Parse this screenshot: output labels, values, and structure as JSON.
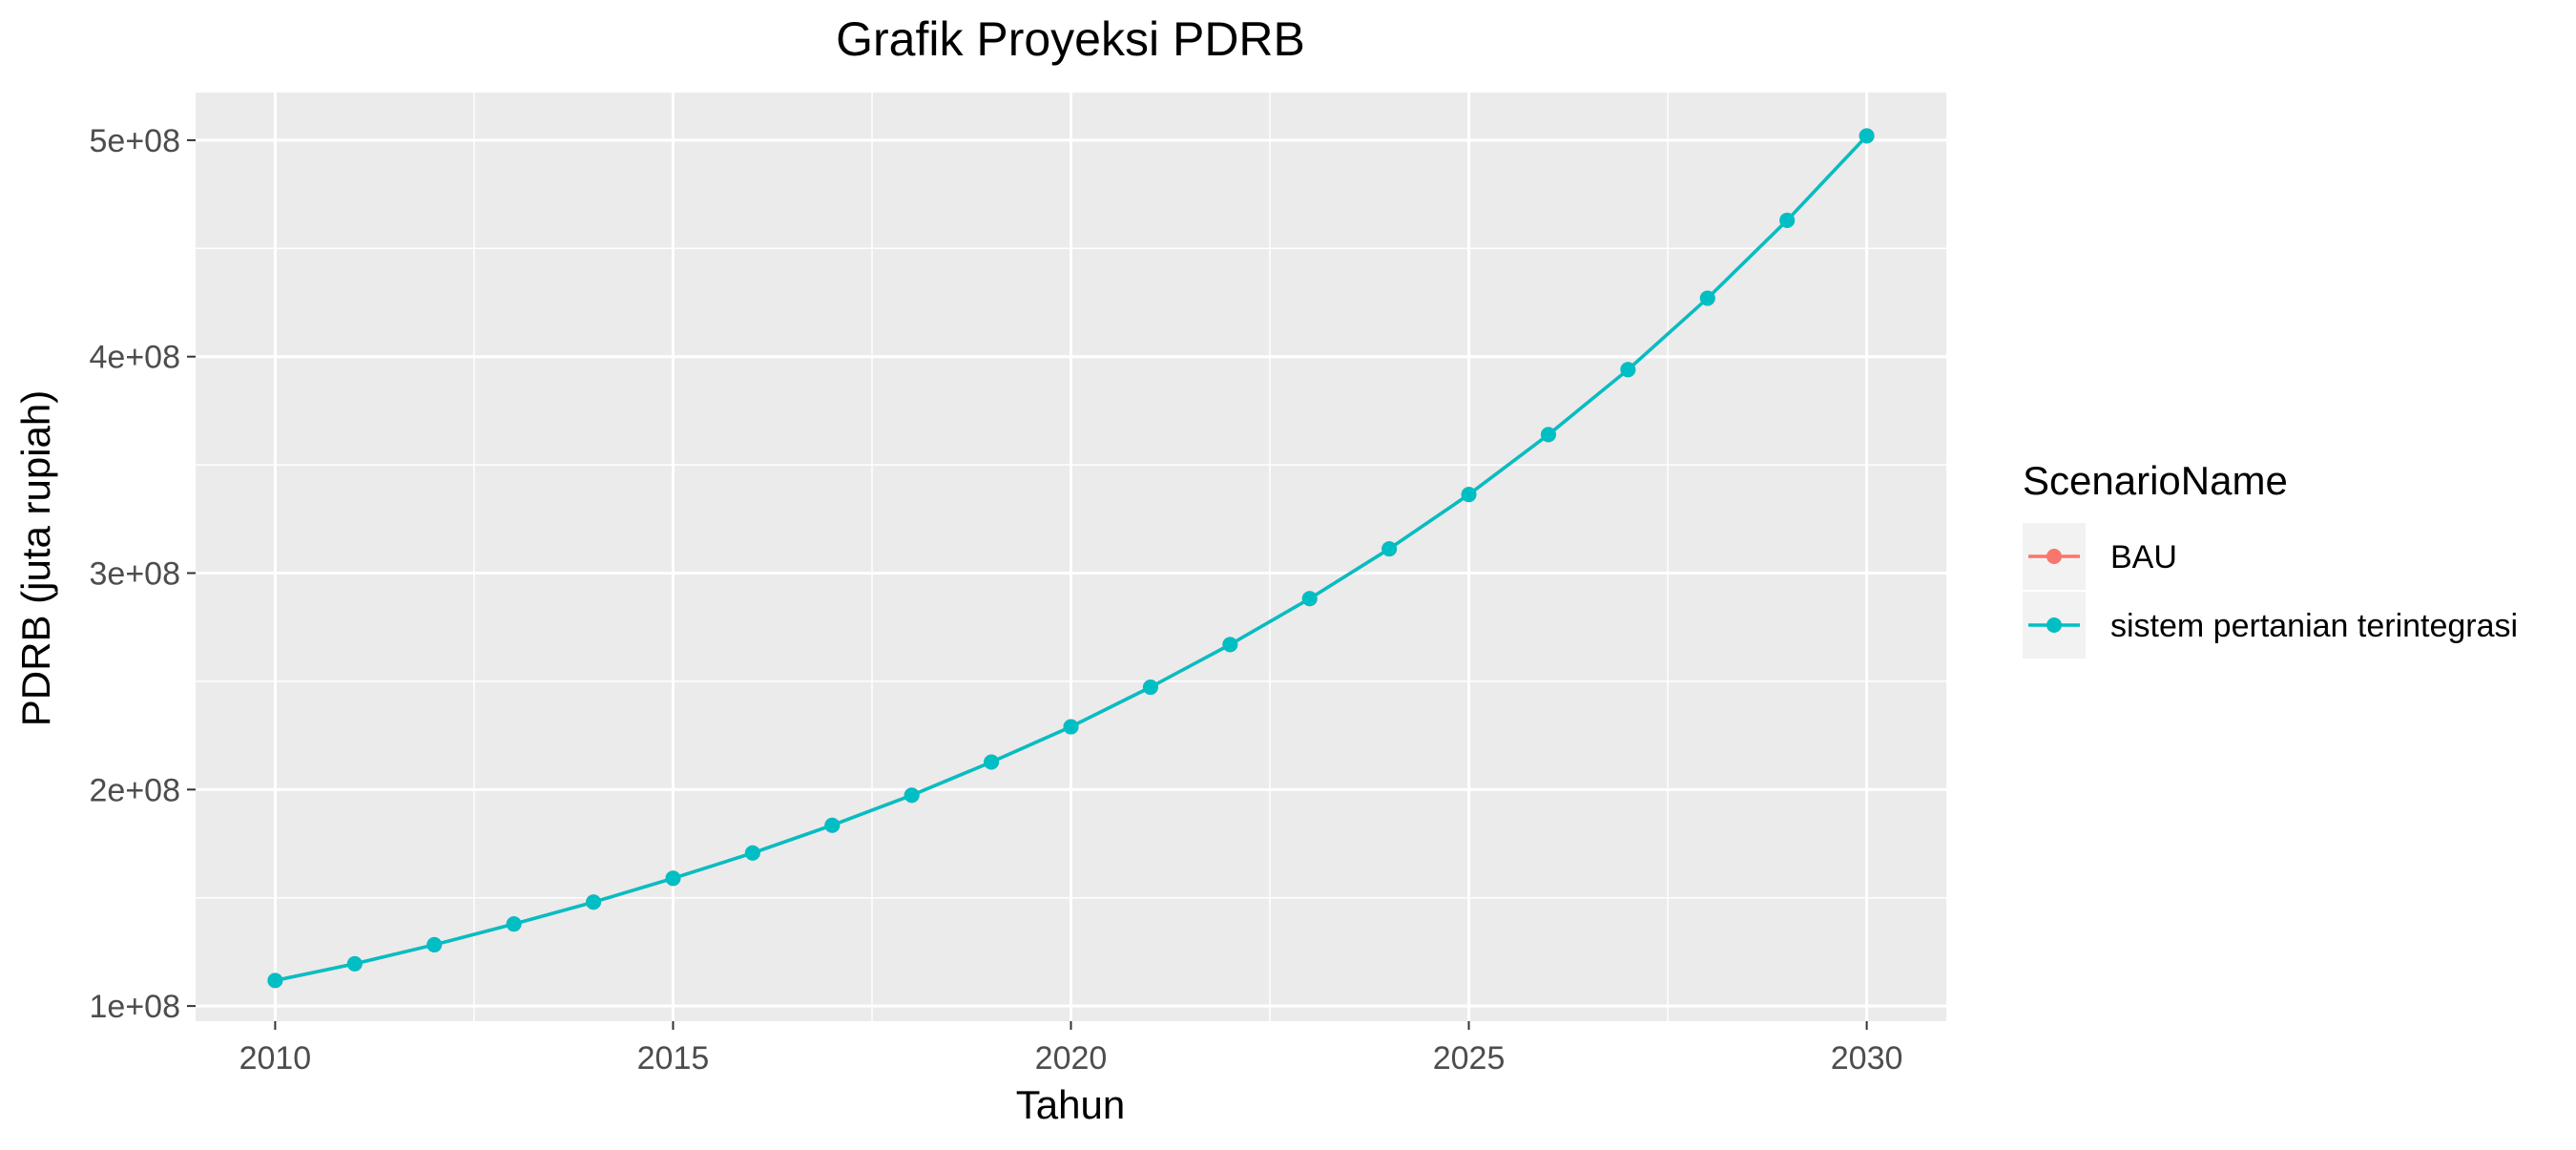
{
  "chart_data": {
    "type": "line",
    "title": "Grafik Proyeksi PDRB",
    "xlabel": "Tahun",
    "ylabel": "PDRB (juta rupiah)",
    "x": [
      2010,
      2011,
      2012,
      2013,
      2014,
      2015,
      2016,
      2017,
      2018,
      2019,
      2020,
      2021,
      2022,
      2023,
      2024,
      2025,
      2026,
      2027,
      2028,
      2029,
      2030
    ],
    "xticks": [
      2010,
      2015,
      2020,
      2025,
      2030
    ],
    "xtick_labels": [
      "2010",
      "2015",
      "2020",
      "2025",
      "2030"
    ],
    "xlim": [
      2009,
      2031
    ],
    "yticks": [
      100000000,
      200000000,
      300000000,
      400000000,
      500000000
    ],
    "ytick_labels": [
      "1e+08",
      "2e+08",
      "3e+08",
      "4e+08",
      "5e+08"
    ],
    "ylim": [
      93000000,
      522000000
    ],
    "grid": true,
    "legend": {
      "title": "ScenarioName",
      "placement": "right",
      "entries": [
        {
          "label": "BAU",
          "color": "#F8766D"
        },
        {
          "label": "sistem pertanian terintegrasi",
          "color": "#00BFC4"
        }
      ]
    },
    "series": [
      {
        "name": "BAU",
        "color": "#F8766D",
        "values": [
          111800000,
          119500000,
          128300000,
          137900000,
          148000000,
          159000000,
          170700000,
          183500000,
          197400000,
          212700000,
          229000000,
          247300000,
          267000000,
          288200000,
          311200000,
          336300000,
          364000000,
          394000000,
          427000000,
          463000000,
          502000000
        ]
      },
      {
        "name": "sistem pertanian terintegrasi",
        "color": "#00BFC4",
        "values": [
          111800000,
          119500000,
          128300000,
          137900000,
          148000000,
          159000000,
          170700000,
          183500000,
          197400000,
          212700000,
          229000000,
          247300000,
          267000000,
          288200000,
          311200000,
          336300000,
          364000000,
          394000000,
          427000000,
          463000000,
          502000000
        ]
      }
    ]
  },
  "colors": {
    "panel_background": "#EBEBEB",
    "grid_major": "#FFFFFF",
    "legend_key_background": "#F2F2F2"
  }
}
